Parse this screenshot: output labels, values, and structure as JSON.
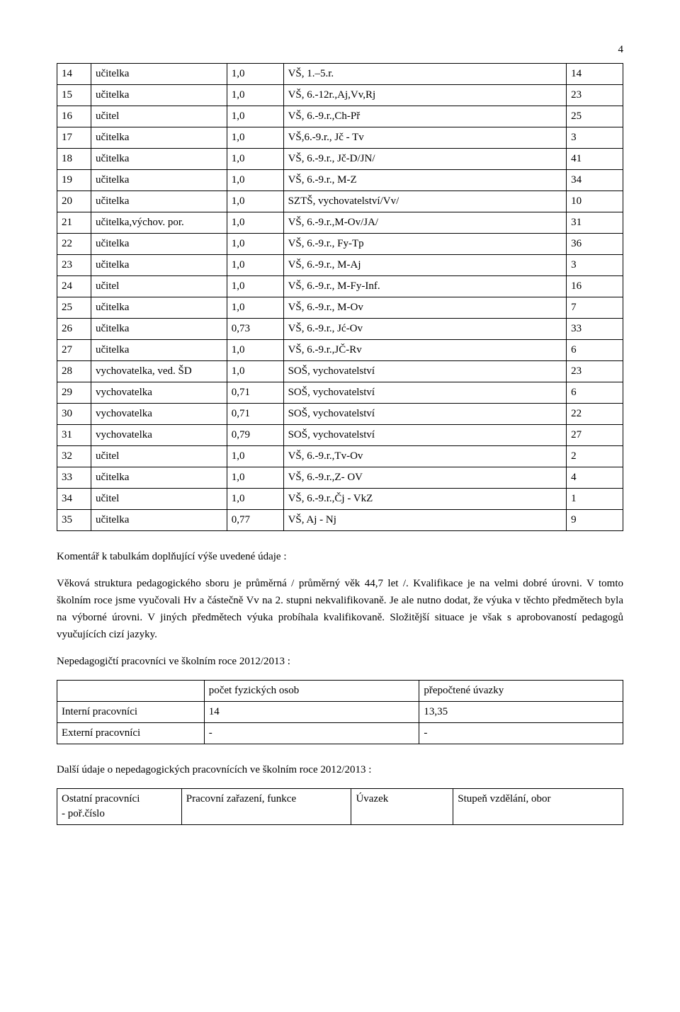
{
  "pageNumber": "4",
  "table1": {
    "colClasses": [
      "t1-c0",
      "t1-c1",
      "t1-c2",
      "t1-c3",
      "t1-c4"
    ],
    "rows": [
      [
        "14",
        "učitelka",
        "1,0",
        "VŠ, 1.–5.r.",
        "14"
      ],
      [
        "15",
        "učitelka",
        "1,0",
        "VŠ, 6.-12r.,Aj,Vv,Rj",
        "23"
      ],
      [
        "16",
        "učitel",
        "1,0",
        "VŠ, 6.-9.r.,Ch-Př",
        "25"
      ],
      [
        "17",
        "učitelka",
        "1,0",
        "VŠ,6.-9.r., Jč - Tv",
        "3"
      ],
      [
        "18",
        "učitelka",
        "1,0",
        "VŠ, 6.-9.r., Jč-D/JN/",
        "41"
      ],
      [
        "19",
        "učitelka",
        "1,0",
        "VŠ, 6.-9.r., M-Z",
        "34"
      ],
      [
        "20",
        "učitelka",
        "1,0",
        "SZTŠ, vychovatelství/Vv/",
        "10"
      ],
      [
        "21",
        "učitelka,výchov. por.",
        "1,0",
        "VŠ, 6.-9.r.,M-Ov/JA/",
        "31"
      ],
      [
        "22",
        "učitelka",
        "1,0",
        "VŠ, 6.-9.r., Fy-Tp",
        "36"
      ],
      [
        "23",
        "učitelka",
        "1,0",
        "VŠ, 6.-9.r., M-Aj",
        "3"
      ],
      [
        "24",
        "učitel",
        "1,0",
        "VŠ, 6.-9.r., M-Fy-Inf.",
        "16"
      ],
      [
        "25",
        "učitelka",
        "1,0",
        "VŠ, 6.-9.r., M-Ov",
        "7"
      ],
      [
        "26",
        "učitelka",
        "0,73",
        "VŠ, 6.-9.r., Jć-Ov",
        "33"
      ],
      [
        "27",
        "učitelka",
        "1,0",
        "VŠ, 6.-9.r.,JČ-Rv",
        "6"
      ],
      [
        "28",
        "vychovatelka, ved. ŠD",
        "1,0",
        "SOŠ, vychovatelství",
        "23"
      ],
      [
        "29",
        "vychovatelka",
        "0,71",
        "SOŠ, vychovatelství",
        "6"
      ],
      [
        "30",
        "vychovatelka",
        "0,71",
        "SOŠ, vychovatelství",
        "22"
      ],
      [
        "31",
        "vychovatelka",
        "0,79",
        "SOŠ, vychovatelství",
        "27"
      ],
      [
        "32",
        "učitel",
        "1,0",
        "VŠ, 6.-9.r.,Tv-Ov",
        "2"
      ],
      [
        "33",
        "učitelka",
        "1,0",
        "VŠ, 6.-9.r.,Z- OV",
        "4"
      ],
      [
        "34",
        "učitel",
        "1,0",
        "VŠ, 6.-9.r.,Čj - VkZ",
        "1"
      ],
      [
        "35",
        "učitelka",
        "0,77",
        "VŠ, Aj - Nj",
        "9"
      ]
    ]
  },
  "paragraphs": {
    "p1": "Komentář k tabulkám doplňující výše uvedené údaje :",
    "p2": "Věková struktura pedagogického sboru je průměrná / průměrný věk 44,7 let /. Kvalifikace je na  velmi dobré úrovni. V tomto školním roce jsme  vyučovali Hv a částečně Vv na 2. stupni nekvalifikovaně. Je ale nutno dodat, že výuka v těchto předmětech byla na výborné úrovni. V jiných předmětech výuka probíhala kvalifikovaně. Složitější situace je však s aprobovaností pedagogů vyučujících cizí jazyky.",
    "p3": "Nepedagogičtí pracovníci ve školním roce 2012/2013 :",
    "p4": "Další údaje o nepedagogických pracovnících ve školním roce 2012/2013 :"
  },
  "table2": {
    "colClasses": [
      "t2-c0",
      "t2-c1",
      "t2-c2"
    ],
    "rows": [
      [
        "",
        "počet fyzických osob",
        "přepočtené úvazky"
      ],
      [
        "Interní pracovníci",
        "14",
        "13,35"
      ],
      [
        "Externí pracovníci",
        "-",
        "-"
      ]
    ]
  },
  "table3": {
    "colClasses": [
      "t3-c0",
      "t3-c1",
      "t3-c2",
      "t3-c3"
    ],
    "rows": [
      [
        "Ostatní pracovníci\n- poř.číslo",
        "Pracovní zařazení, funkce",
        "Úvazek",
        "Stupeň vzdělání, obor"
      ]
    ]
  }
}
